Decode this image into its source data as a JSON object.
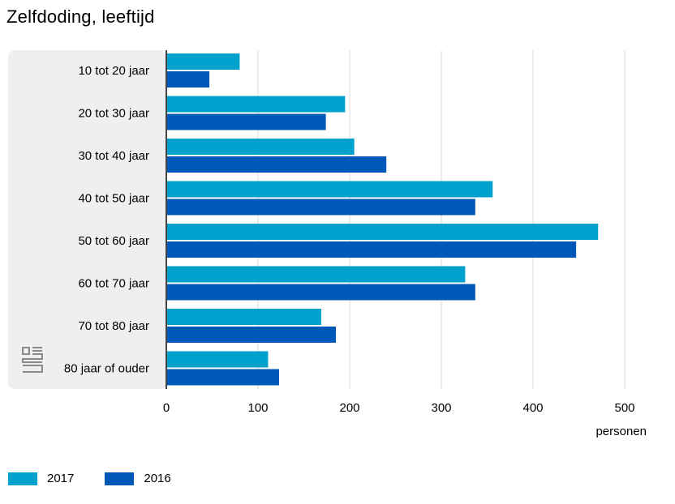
{
  "chart_data": {
    "type": "bar",
    "orientation": "horizontal",
    "title": "Zelfdoding, leeftijd",
    "xlabel": "personen",
    "ylabel": "",
    "categories": [
      "10 tot 20 jaar",
      "20 tot 30 jaar",
      "30 tot 40 jaar",
      "40 tot 50 jaar",
      "50 tot 60 jaar",
      "60 tot 70 jaar",
      "70 tot 80 jaar",
      "80 jaar of ouder"
    ],
    "series": [
      {
        "name": "2017",
        "color": "#00a1cd",
        "values": [
          80,
          195,
          205,
          356,
          471,
          326,
          169,
          111
        ]
      },
      {
        "name": "2016",
        "color": "#0058b8",
        "values": [
          47,
          174,
          240,
          337,
          447,
          337,
          185,
          123
        ]
      }
    ],
    "xlim": [
      0,
      500
    ],
    "xticks": [
      0,
      100,
      200,
      300,
      400,
      500
    ],
    "grid": true,
    "legend_position": "bottom-left"
  },
  "logo": {
    "text": "cbs",
    "icon": "cbs-logo-icon"
  }
}
